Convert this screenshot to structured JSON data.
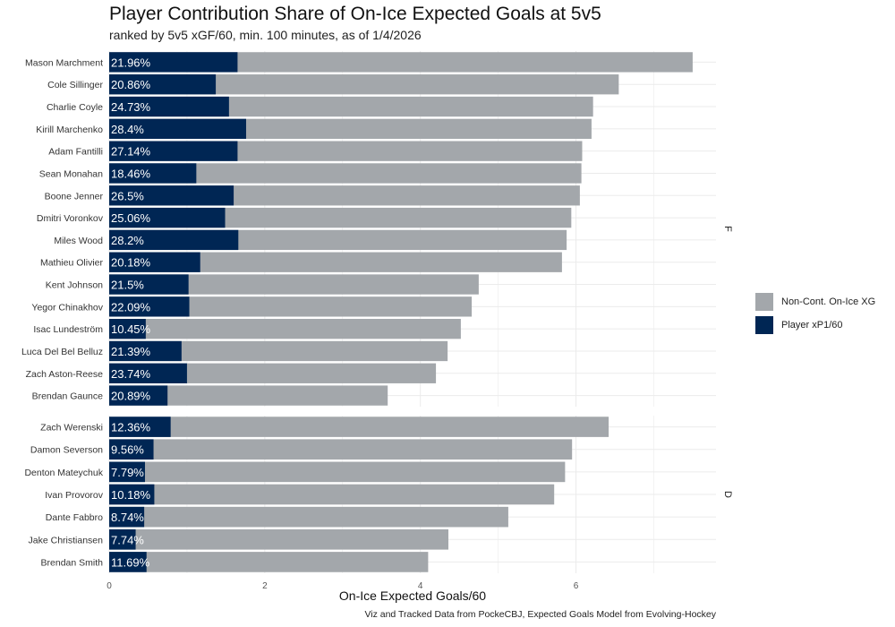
{
  "chart_data": {
    "type": "bar",
    "stacked": true,
    "orientation": "horizontal",
    "title": "Player Contribution Share of On-Ice Expected Goals at 5v5",
    "subtitle": "ranked by 5v5 xGF/60, min. 100 minutes, as of 1/4/2026",
    "xlabel": "On-Ice Expected Goals/60",
    "caption": "Viz and Tracked Data from PockeCBJ, Expected Goals Model from Evolving-Hockey",
    "xlim": [
      0,
      7.8
    ],
    "xticks": [
      0,
      2,
      4,
      6
    ],
    "legend_position": "right",
    "colors": {
      "player": "#002654",
      "noncont": "#a3a7ab",
      "grid": "#ebebeb",
      "pct_text": "#ffffff"
    },
    "series": [
      {
        "name": "Non-Cont. On-Ice XG",
        "key": "noncont"
      },
      {
        "name": "Player xP1/60",
        "key": "player"
      }
    ],
    "facets": [
      {
        "label": "F",
        "players": [
          {
            "name": "Mason Marchment",
            "total": 7.5,
            "player": 1.65,
            "pct": "21.96%"
          },
          {
            "name": "Cole Sillinger",
            "total": 6.55,
            "player": 1.37,
            "pct": "20.86%"
          },
          {
            "name": "Charlie Coyle",
            "total": 6.22,
            "player": 1.54,
            "pct": "24.73%"
          },
          {
            "name": "Kirill Marchenko",
            "total": 6.2,
            "player": 1.76,
            "pct": "28.4%"
          },
          {
            "name": "Adam Fantilli",
            "total": 6.08,
            "player": 1.65,
            "pct": "27.14%"
          },
          {
            "name": "Sean Monahan",
            "total": 6.07,
            "player": 1.12,
            "pct": "18.46%"
          },
          {
            "name": "Boone Jenner",
            "total": 6.05,
            "player": 1.6,
            "pct": "26.5%"
          },
          {
            "name": "Dmitri Voronkov",
            "total": 5.94,
            "player": 1.49,
            "pct": "25.06%"
          },
          {
            "name": "Miles Wood",
            "total": 5.88,
            "player": 1.66,
            "pct": "28.2%"
          },
          {
            "name": "Mathieu Olivier",
            "total": 5.82,
            "player": 1.17,
            "pct": "20.18%"
          },
          {
            "name": "Kent Johnson",
            "total": 4.75,
            "player": 1.02,
            "pct": "21.5%"
          },
          {
            "name": "Yegor Chinakhov",
            "total": 4.66,
            "player": 1.03,
            "pct": "22.09%"
          },
          {
            "name": "Isac Lundeström",
            "total": 4.52,
            "player": 0.47,
            "pct": "10.45%"
          },
          {
            "name": "Luca Del Bel Belluz",
            "total": 4.35,
            "player": 0.93,
            "pct": "21.39%"
          },
          {
            "name": "Zach Aston-Reese",
            "total": 4.2,
            "player": 1.0,
            "pct": "23.74%"
          },
          {
            "name": "Brendan Gaunce",
            "total": 3.58,
            "player": 0.75,
            "pct": "20.89%"
          }
        ]
      },
      {
        "label": "D",
        "players": [
          {
            "name": "Zach Werenski",
            "total": 6.42,
            "player": 0.79,
            "pct": "12.36%"
          },
          {
            "name": "Damon Severson",
            "total": 5.95,
            "player": 0.57,
            "pct": "9.56%"
          },
          {
            "name": "Denton Mateychuk",
            "total": 5.86,
            "player": 0.46,
            "pct": "7.79%"
          },
          {
            "name": "Ivan Provorov",
            "total": 5.72,
            "player": 0.58,
            "pct": "10.18%"
          },
          {
            "name": "Dante Fabbro",
            "total": 5.13,
            "player": 0.45,
            "pct": "8.74%"
          },
          {
            "name": "Jake Christiansen",
            "total": 4.36,
            "player": 0.34,
            "pct": "7.74%"
          },
          {
            "name": "Brendan Smith",
            "total": 4.1,
            "player": 0.48,
            "pct": "11.69%"
          }
        ]
      }
    ]
  }
}
